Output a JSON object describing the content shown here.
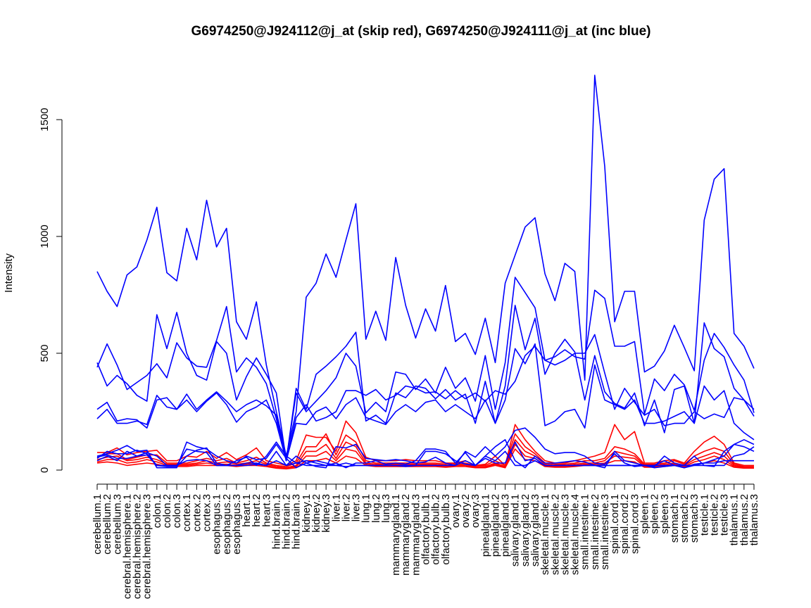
{
  "chart_data": {
    "type": "line",
    "title": "G6974250@J924112@j_at (skip red), G6974250@J924111@j_at (inc blue)",
    "xlabel": "",
    "ylabel": "Intensity",
    "ylim": [
      0,
      1700
    ],
    "yticks": [
      0,
      500,
      1000,
      1500
    ],
    "grid": false,
    "colors": {
      "skip": "#ff0000",
      "inc": "#0000ff"
    },
    "categories": [
      "cerebellum.1",
      "cerebellum.2",
      "cerebellum.3",
      "cerebral.hemisphere.1",
      "cerebral.hemisphere.2",
      "cerebral.hemisphere.3",
      "colon.1",
      "colon.2",
      "colon.3",
      "cortex.1",
      "cortex.2",
      "cortex.3",
      "esophagus.1",
      "esophagus.2",
      "esophagus.3",
      "heart.1",
      "heart.2",
      "heart.3",
      "hind.brain.1",
      "hind.brain.2",
      "hind.brain.3",
      "kidney.1",
      "kidney.2",
      "kidney.3",
      "liver.1",
      "liver.2",
      "liver.3",
      "lung.1",
      "lung.2",
      "lung.3",
      "mammarygland.1",
      "mammarygland.2",
      "mammarygland.3",
      "olfactory.bulb.1",
      "olfactory.bulb.2",
      "olfactory.bulb.3",
      "ovary.1",
      "ovary.2",
      "ovary.3",
      "pinealgland.1",
      "pinealgland.2",
      "pinealgland.3",
      "salivary.gland.1",
      "salivary.gland.2",
      "salivary.gland.3",
      "skeletal.muscle.1",
      "skeletal.muscle.2",
      "skeletal.muscle.3",
      "skeletal.muscle.4",
      "small.intestine.1",
      "small.intestine.2",
      "small.intestine.3",
      "spinal.cord.1",
      "spinal.cord.2",
      "spinal.cord.3",
      "spleen.1",
      "spleen.2",
      "spleen.3",
      "stomach.1",
      "stomach.2",
      "stomach.3",
      "testicle.1",
      "testicle.2",
      "testicle.3",
      "thalamus.1",
      "thalamus.2",
      "thalamus.3"
    ],
    "series": [
      {
        "group": "inc",
        "values": [
          850,
          765,
          700,
          835,
          870,
          985,
          1125,
          845,
          810,
          1035,
          900,
          1155,
          955,
          1035,
          635,
          560,
          720,
          450,
          250,
          60,
          250,
          740,
          800,
          925,
          825,
          985,
          1140,
          560,
          680,
          555,
          910,
          705,
          565,
          690,
          595,
          790,
          550,
          585,
          495,
          650,
          460,
          800,
          920,
          1040,
          1080,
          840,
          725,
          885,
          850,
          385,
          1690,
          1300,
          635,
          765,
          765,
          420,
          445,
          510,
          620,
          525,
          425,
          1070,
          1245,
          1290,
          585,
          530,
          435
        ]
      },
      {
        "group": "inc",
        "values": [
          440,
          540,
          450,
          345,
          375,
          405,
          455,
          395,
          545,
          480,
          445,
          440,
          555,
          700,
          420,
          480,
          440,
          370,
          220,
          40,
          330,
          250,
          295,
          340,
          395,
          500,
          445,
          245,
          290,
          250,
          420,
          410,
          345,
          390,
          330,
          440,
          350,
          395,
          295,
          490,
          260,
          460,
          825,
          760,
          695,
          470,
          485,
          515,
          485,
          475,
          770,
          735,
          530,
          530,
          550,
          240,
          390,
          340,
          410,
          365,
          255,
          470,
          585,
          525,
          450,
          385,
          245
        ]
      },
      {
        "group": "inc",
        "values": [
          460,
          360,
          405,
          370,
          320,
          295,
          665,
          520,
          675,
          500,
          405,
          385,
          550,
          500,
          300,
          400,
          480,
          410,
          330,
          40,
          350,
          260,
          410,
          445,
          485,
          530,
          590,
          210,
          235,
          200,
          330,
          310,
          360,
          350,
          305,
          345,
          300,
          325,
          200,
          380,
          200,
          360,
          705,
          515,
          650,
          410,
          500,
          560,
          505,
          300,
          490,
          335,
          285,
          265,
          330,
          190,
          300,
          160,
          345,
          360,
          200,
          630,
          520,
          485,
          350,
          300,
          230
        ]
      },
      {
        "group": "inc",
        "values": [
          260,
          290,
          210,
          220,
          215,
          180,
          300,
          310,
          260,
          325,
          260,
          300,
          335,
          295,
          250,
          280,
          300,
          275,
          235,
          40,
          225,
          280,
          210,
          225,
          250,
          340,
          340,
          320,
          345,
          300,
          320,
          360,
          350,
          330,
          335,
          305,
          340,
          305,
          330,
          295,
          340,
          325,
          380,
          490,
          530,
          470,
          450,
          470,
          500,
          500,
          580,
          415,
          260,
          350,
          290,
          235,
          260,
          190,
          200,
          200,
          250,
          220,
          240,
          225,
          310,
          300,
          260
        ]
      },
      {
        "group": "inc",
        "values": [
          220,
          260,
          200,
          200,
          210,
          195,
          320,
          270,
          260,
          300,
          250,
          295,
          330,
          280,
          205,
          250,
          270,
          300,
          200,
          40,
          200,
          195,
          250,
          270,
          220,
          280,
          310,
          225,
          210,
          195,
          250,
          280,
          250,
          290,
          300,
          250,
          280,
          250,
          220,
          300,
          200,
          300,
          520,
          455,
          540,
          190,
          210,
          250,
          260,
          180,
          450,
          300,
          280,
          260,
          300,
          200,
          200,
          210,
          230,
          250,
          200,
          360,
          300,
          340,
          200,
          160,
          130
        ]
      },
      {
        "group": "inc",
        "values": [
          60,
          70,
          85,
          105,
          80,
          85,
          10,
          10,
          10,
          120,
          100,
          90,
          60,
          40,
          30,
          60,
          45,
          50,
          110,
          50,
          10,
          30,
          15,
          10,
          100,
          95,
          110,
          50,
          45,
          40,
          45,
          40,
          30,
          35,
          55,
          30,
          20,
          80,
          55,
          100,
          60,
          100,
          170,
          180,
          140,
          90,
          70,
          75,
          75,
          60,
          30,
          25,
          70,
          30,
          15,
          20,
          15,
          60,
          30,
          20,
          60,
          20,
          15,
          80,
          110,
          130,
          110
        ]
      },
      {
        "group": "inc",
        "values": [
          50,
          80,
          70,
          70,
          85,
          70,
          20,
          15,
          15,
          60,
          85,
          95,
          30,
          20,
          40,
          55,
          20,
          60,
          120,
          60,
          30,
          40,
          30,
          20,
          30,
          10,
          30,
          30,
          40,
          25,
          30,
          25,
          40,
          90,
          90,
          80,
          30,
          75,
          20,
          60,
          100,
          130,
          40,
          10,
          60,
          30,
          30,
          35,
          40,
          35,
          20,
          10,
          80,
          40,
          30,
          20,
          10,
          15,
          20,
          10,
          25,
          30,
          45,
          60,
          110,
          100,
          80
        ]
      },
      {
        "group": "inc",
        "values": [
          55,
          65,
          50,
          50,
          60,
          75,
          60,
          20,
          20,
          90,
          80,
          75,
          20,
          20,
          20,
          20,
          25,
          20,
          80,
          20,
          60,
          30,
          40,
          30,
          20,
          30,
          20,
          20,
          20,
          20,
          20,
          20,
          20,
          80,
          80,
          70,
          40,
          25,
          20,
          50,
          30,
          30,
          120,
          40,
          50,
          20,
          20,
          20,
          20,
          20,
          20,
          20,
          20,
          20,
          20,
          20,
          20,
          40,
          20,
          10,
          20,
          30,
          30,
          40,
          40,
          40,
          40
        ]
      },
      {
        "group": "inc",
        "values": [
          40,
          60,
          40,
          80,
          60,
          65,
          20,
          20,
          20,
          40,
          45,
          40,
          20,
          20,
          20,
          30,
          30,
          20,
          40,
          20,
          30,
          20,
          20,
          20,
          20,
          15,
          20,
          20,
          20,
          20,
          20,
          15,
          20,
          20,
          20,
          20,
          20,
          40,
          20,
          60,
          40,
          80,
          20,
          20,
          40,
          20,
          20,
          20,
          20,
          20,
          20,
          20,
          20,
          20,
          20,
          20,
          20,
          20,
          20,
          20,
          20,
          20,
          20,
          20,
          60,
          70,
          100
        ]
      },
      {
        "group": "skip",
        "values": [
          75,
          75,
          95,
          65,
          75,
          80,
          85,
          40,
          40,
          60,
          55,
          80,
          50,
          75,
          45,
          65,
          95,
          40,
          30,
          20,
          40,
          150,
          140,
          140,
          80,
          210,
          160,
          55,
          40,
          40,
          40,
          45,
          40,
          40,
          40,
          30,
          30,
          40,
          20,
          25,
          60,
          20,
          195,
          130,
          80,
          40,
          30,
          30,
          40,
          50,
          60,
          75,
          195,
          130,
          165,
          30,
          30,
          40,
          45,
          30,
          80,
          120,
          145,
          110,
          30,
          20,
          20
        ]
      },
      {
        "group": "skip",
        "values": [
          55,
          70,
          70,
          45,
          55,
          65,
          65,
          30,
          30,
          30,
          40,
          50,
          40,
          50,
          30,
          40,
          55,
          30,
          20,
          15,
          30,
          100,
          100,
          155,
          65,
          150,
          120,
          40,
          30,
          30,
          30,
          30,
          30,
          30,
          30,
          25,
          30,
          30,
          20,
          20,
          40,
          20,
          155,
          100,
          70,
          30,
          25,
          25,
          30,
          40,
          40,
          50,
          100,
          90,
          70,
          25,
          25,
          30,
          40,
          25,
          60,
          80,
          95,
          80,
          25,
          15,
          15
        ]
      },
      {
        "group": "skip",
        "values": [
          45,
          55,
          60,
          40,
          45,
          55,
          45,
          25,
          25,
          25,
          30,
          40,
          30,
          35,
          25,
          30,
          40,
          25,
          15,
          10,
          20,
          80,
          80,
          110,
          50,
          120,
          100,
          30,
          25,
          25,
          25,
          25,
          25,
          25,
          25,
          20,
          25,
          25,
          15,
          15,
          30,
          15,
          130,
          80,
          60,
          25,
          20,
          20,
          25,
          30,
          30,
          40,
          80,
          70,
          60,
          20,
          20,
          25,
          30,
          20,
          45,
          60,
          75,
          60,
          20,
          12,
          12
        ]
      },
      {
        "group": "skip",
        "values": [
          35,
          45,
          45,
          30,
          35,
          45,
          35,
          20,
          20,
          20,
          25,
          30,
          25,
          25,
          20,
          25,
          30,
          20,
          10,
          8,
          15,
          60,
          60,
          80,
          40,
          90,
          80,
          25,
          20,
          20,
          20,
          20,
          20,
          20,
          20,
          15,
          20,
          20,
          12,
          12,
          25,
          12,
          110,
          60,
          50,
          20,
          15,
          15,
          20,
          25,
          25,
          30,
          60,
          55,
          50,
          15,
          15,
          20,
          25,
          15,
          35,
          45,
          60,
          45,
          15,
          10,
          10
        ]
      },
      {
        "group": "skip",
        "values": [
          30,
          35,
          30,
          20,
          25,
          30,
          25,
          15,
          15,
          15,
          20,
          20,
          20,
          20,
          15,
          20,
          20,
          15,
          8,
          5,
          10,
          40,
          40,
          50,
          30,
          60,
          50,
          20,
          15,
          15,
          15,
          15,
          15,
          15,
          15,
          12,
          15,
          15,
          10,
          10,
          20,
          10,
          90,
          45,
          40,
          15,
          12,
          12,
          15,
          20,
          20,
          25,
          40,
          40,
          35,
          12,
          12,
          15,
          20,
          12,
          25,
          30,
          40,
          30,
          12,
          8,
          8
        ]
      }
    ]
  }
}
